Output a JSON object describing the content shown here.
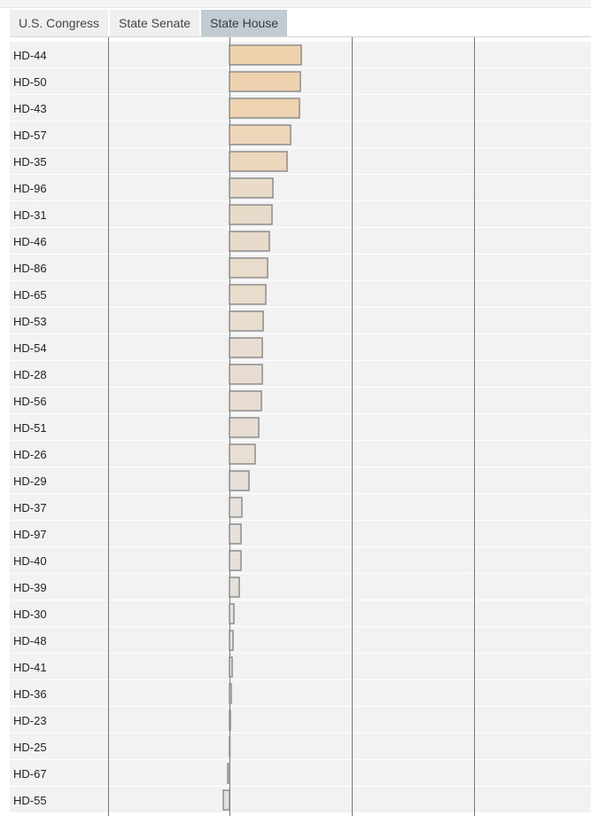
{
  "tabs": [
    {
      "label": "U.S. Congress",
      "active": false
    },
    {
      "label": "State Senate",
      "active": false
    },
    {
      "label": "State House",
      "active": true
    }
  ],
  "colors": {
    "bar_high": "#eed2ae",
    "bar_low": "#e6e1dd",
    "bar_stroke": "#8c8c8c",
    "row_bg": "#f2f2f2",
    "tab_active": "#c1cbd2",
    "tab_inactive": "#efefef"
  },
  "chart_data": {
    "type": "bar",
    "orientation": "horizontal",
    "title": "",
    "xlabel": "",
    "ylabel": "",
    "grid": true,
    "categories": [
      "HD-44",
      "HD-50",
      "HD-43",
      "HD-57",
      "HD-35",
      "HD-96",
      "HD-31",
      "HD-46",
      "HD-86",
      "HD-65",
      "HD-53",
      "HD-54",
      "HD-28",
      "HD-56",
      "HD-51",
      "HD-26",
      "HD-29",
      "HD-37",
      "HD-97",
      "HD-40",
      "HD-39",
      "HD-30",
      "HD-48",
      "HD-41",
      "HD-36",
      "HD-23",
      "HD-25",
      "HD-67",
      "HD-55"
    ],
    "values": [
      81,
      80,
      79,
      69,
      65,
      49,
      48,
      45,
      43,
      41,
      38,
      37,
      37,
      36,
      33,
      29,
      22,
      14,
      13,
      13,
      11,
      5,
      4,
      3,
      2,
      1,
      0,
      -2,
      -7
    ],
    "xlim": [
      -137,
      276
    ],
    "gridlines": [
      -137,
      138,
      276
    ]
  }
}
